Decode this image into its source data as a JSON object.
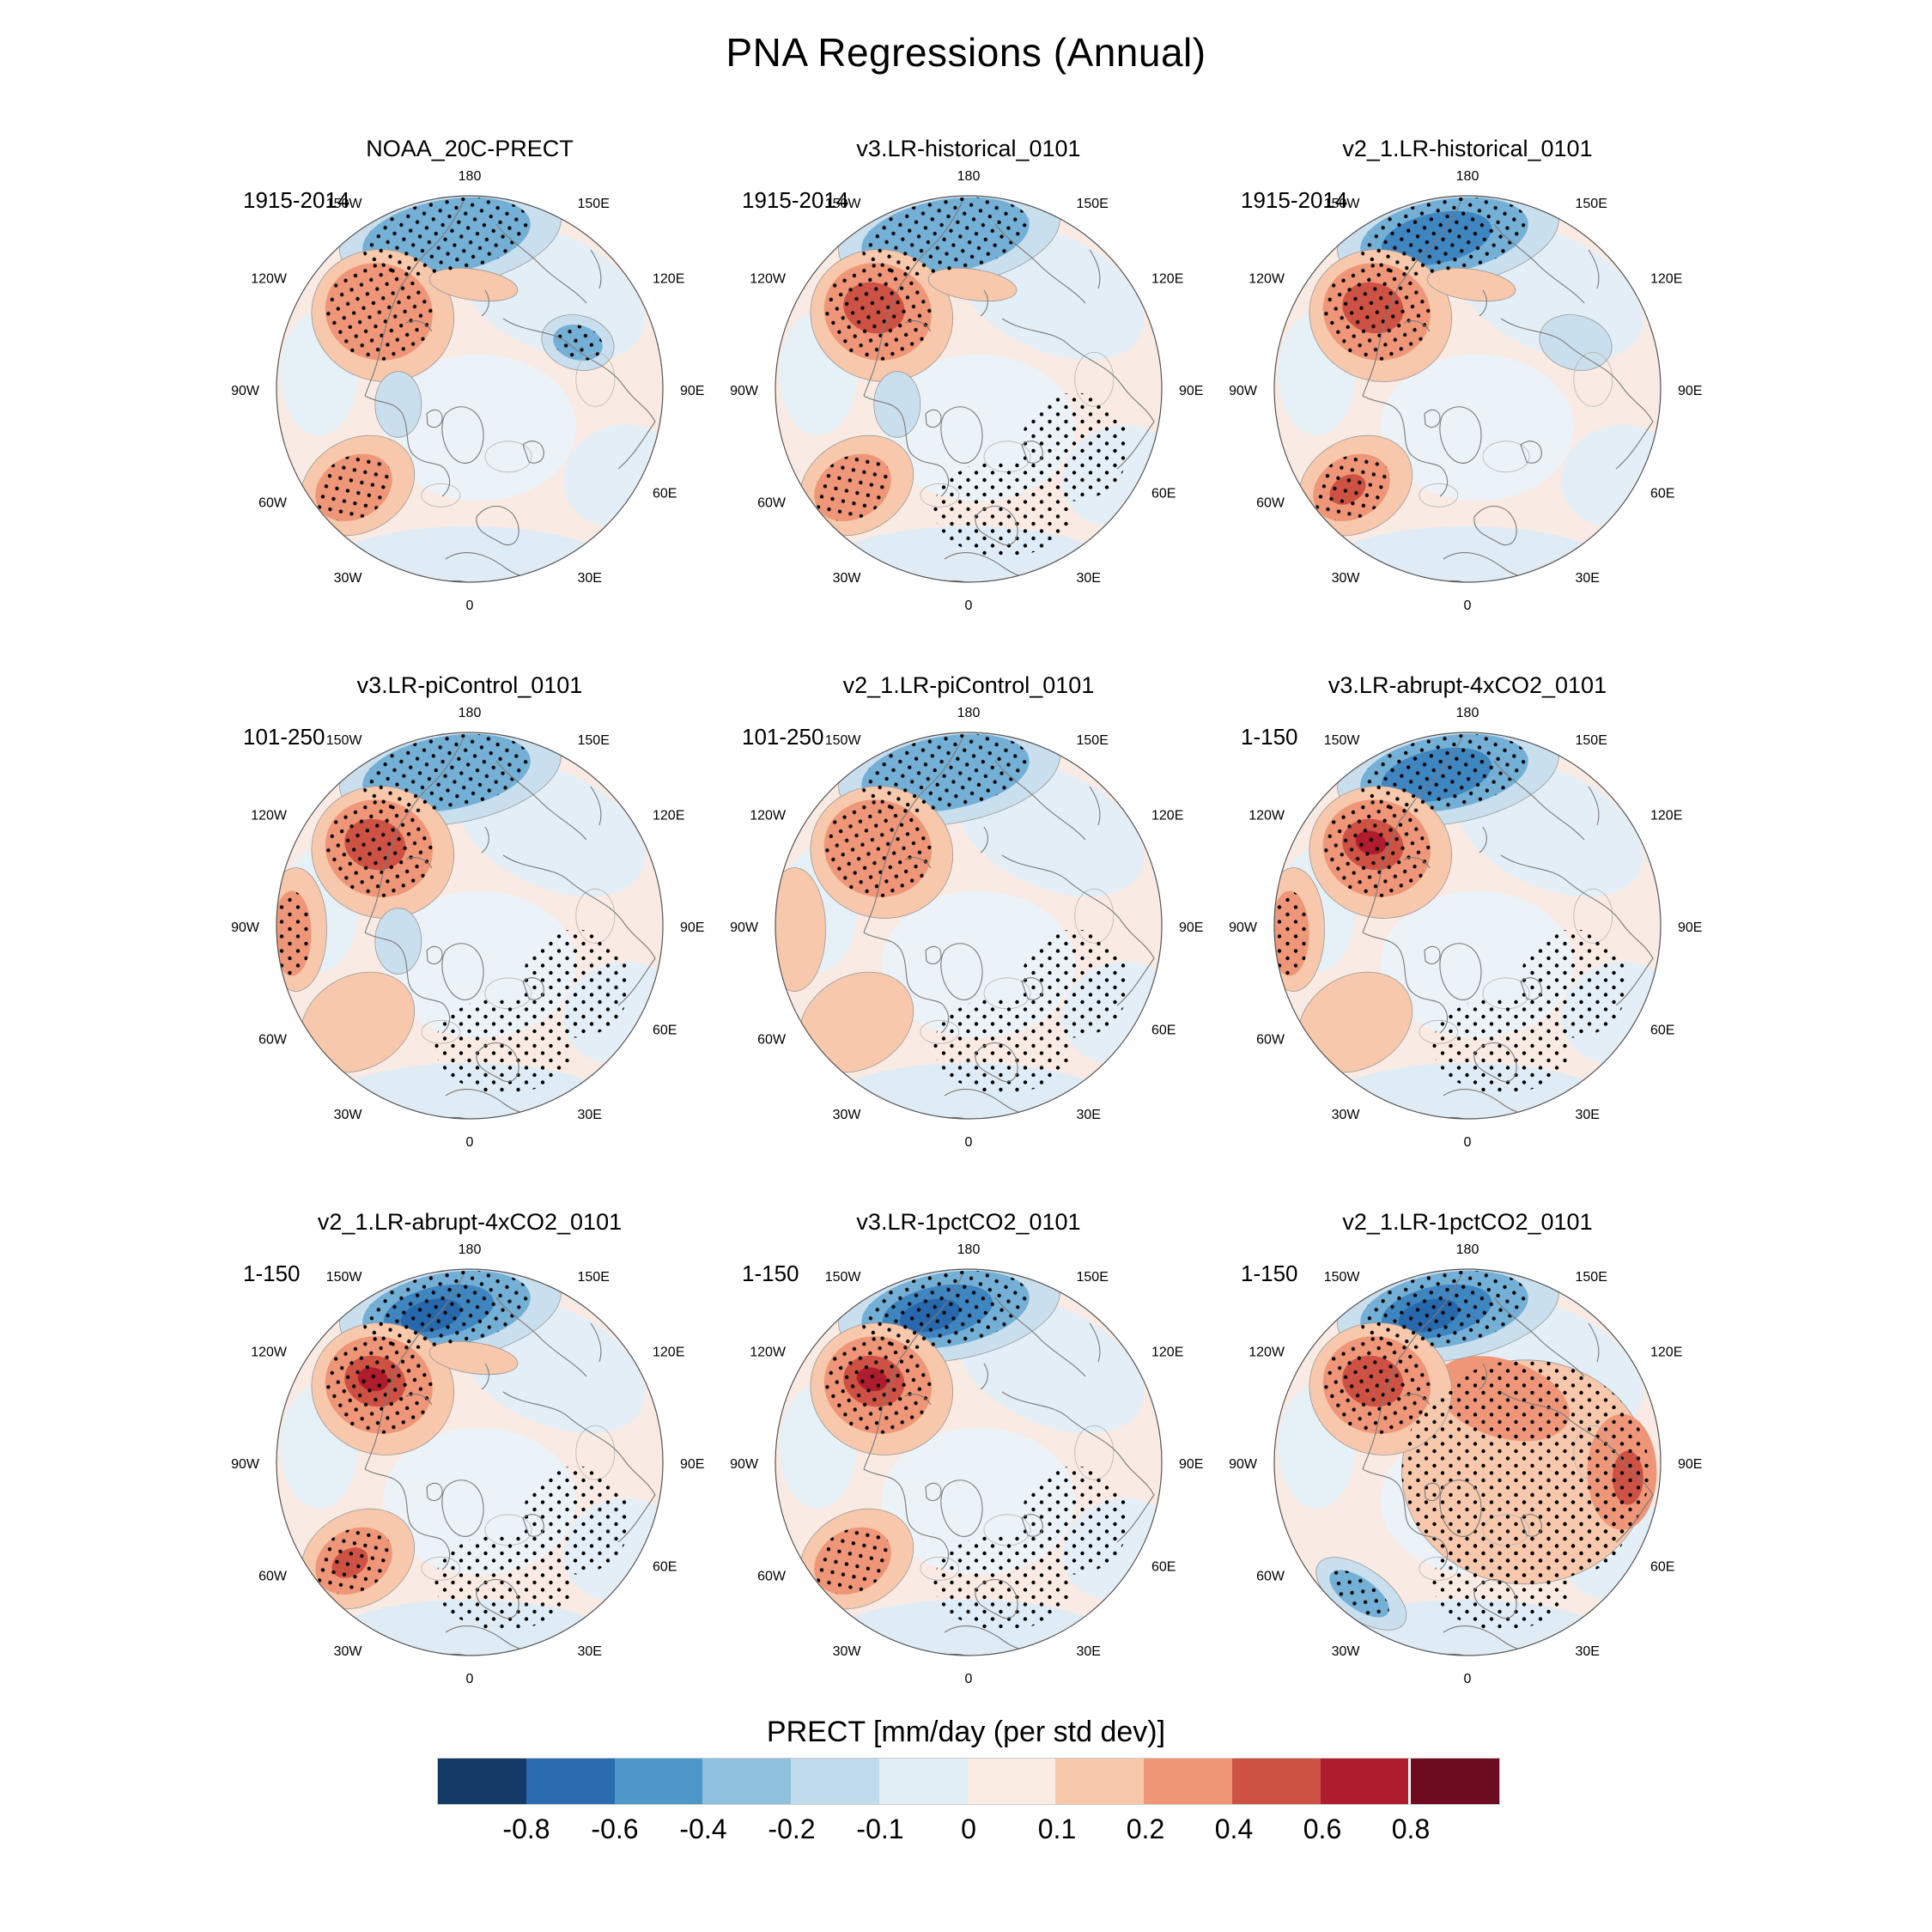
{
  "page": {
    "title": "PNA Regressions (Annual)"
  },
  "chart_data": {
    "type": "heatmap",
    "title": "PNA Regressions (Annual)",
    "projection": "north-polar-stereographic",
    "longitude_labels": [
      "180",
      "150E",
      "120E",
      "90E",
      "60E",
      "30E",
      "0",
      "30W",
      "60W",
      "90W",
      "120W",
      "150W"
    ],
    "colorbar": {
      "title": "PRECT [mm/day (per std dev)]",
      "tick_labels": [
        "-0.8",
        "-0.6",
        "-0.4",
        "-0.2",
        "-0.1",
        "0",
        "0.1",
        "0.2",
        "0.4",
        "0.6",
        "0.8"
      ],
      "segment_colors": [
        "#143a68",
        "#2b6cb1",
        "#4d97c9",
        "#8fc1dc",
        "#c0dcec",
        "#e2eef5",
        "#fbece3",
        "#f7c7a9",
        "#ef9677",
        "#cd5244",
        "#ae1c2d",
        "#6d0b20"
      ]
    },
    "palette": {
      "blue": [
        "#cadfee",
        "#74b0d6",
        "#3f85c0",
        "#2767ac"
      ],
      "orange": [
        "#f7c8ab",
        "#ef9678",
        "#cd5244",
        "#ae1c2d"
      ],
      "background_pink": "#f9ebe3",
      "background_blue": "#e3eef6",
      "stipple": "#000000",
      "coastline": "#7a7a7a"
    },
    "panels": [
      {
        "title": "NOAA_20C-PRECT",
        "period": "1915-2014",
        "features": {
          "pacific_blue": "moderate",
          "alaska_orange": "moderate",
          "atlantic_orange": "moderate",
          "siberia_blue": "moderate",
          "hudson_blue": "weak",
          "pole_streak_orange": "weak"
        }
      },
      {
        "title": "v3.LR-historical_0101",
        "period": "1915-2014",
        "features": {
          "pacific_blue": "moderate",
          "alaska_orange": "strong",
          "atlantic_orange": "moderate",
          "hudson_blue": "weak",
          "pole_streak_orange": "weak",
          "europe_stipple": true
        }
      },
      {
        "title": "v2_1.LR-historical_0101",
        "period": "1915-2014",
        "features": {
          "pacific_blue": "strong",
          "alaska_orange": "strong",
          "atlantic_orange": "strong",
          "siberia_blue": "weak",
          "pole_streak_orange": "weak"
        }
      },
      {
        "title": "v3.LR-piControl_0101",
        "period": "101-250",
        "features": {
          "pacific_blue": "moderate",
          "alaska_orange": "strong",
          "atlantic_orange": "weak",
          "west_edge_orange": "moderate",
          "hudson_blue": "weak",
          "europe_stipple": true
        }
      },
      {
        "title": "v2_1.LR-piControl_0101",
        "period": "101-250",
        "features": {
          "pacific_blue": "moderate",
          "alaska_orange": "moderate",
          "atlantic_orange": "weak",
          "west_edge_orange": "weak",
          "europe_stipple": true
        }
      },
      {
        "title": "v3.LR-abrupt-4xCO2_0101",
        "period": "1-150",
        "features": {
          "pacific_blue": "strong",
          "alaska_orange": "intense",
          "atlantic_orange": "weak",
          "west_edge_orange": "moderate",
          "europe_stipple": true
        }
      },
      {
        "title": "v2_1.LR-abrupt-4xCO2_0101",
        "period": "1-150",
        "features": {
          "pacific_blue": "intense",
          "alaska_orange": "intense",
          "atlantic_orange": "strong",
          "pole_streak_orange": "weak",
          "europe_stipple": true
        }
      },
      {
        "title": "v3.LR-1pctCO2_0101",
        "period": "1-150",
        "features": {
          "pacific_blue": "intense",
          "alaska_orange": "intense",
          "atlantic_orange": "moderate",
          "europe_stipple": true
        }
      },
      {
        "title": "v2_1.LR-1pctCO2_0101",
        "period": "1-150",
        "features": {
          "pacific_blue": "intense",
          "alaska_orange": "strong",
          "eurasia_orange": "strong",
          "sw_blue": "moderate",
          "europe_stipple": true
        }
      }
    ]
  }
}
